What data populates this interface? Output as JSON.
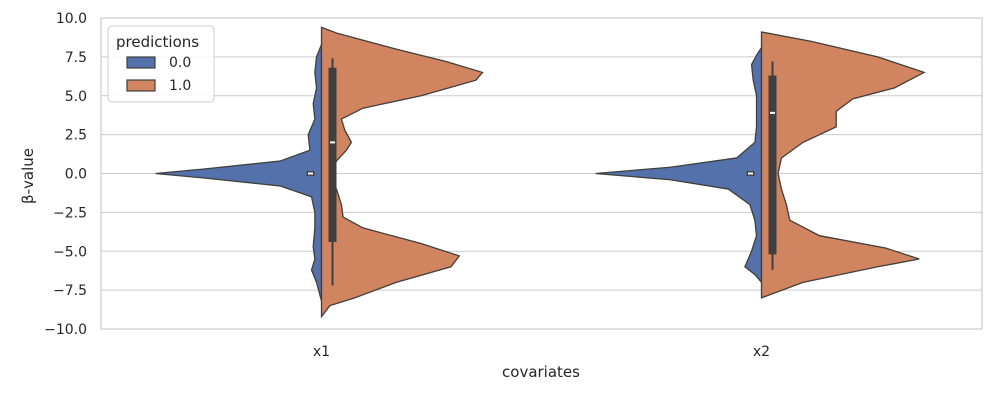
{
  "chart_data": {
    "type": "violin",
    "split": true,
    "title": "",
    "xlabel": "covariates",
    "ylabel": "β-value",
    "categories": [
      "x1",
      "x2"
    ],
    "ylim": [
      -10,
      10
    ],
    "yticks": [
      -10.0,
      -7.5,
      -5.0,
      -2.5,
      0.0,
      2.5,
      5.0,
      7.5,
      10.0
    ],
    "ytick_labels": [
      "−10.0",
      "−7.5",
      "−5.0",
      "−2.5",
      "0.0",
      "2.5",
      "5.0",
      "7.5",
      "10.0"
    ],
    "grid": true,
    "legend": {
      "title": "predictions",
      "placement": "top-left"
    },
    "series": [
      {
        "name": "0.0",
        "color": "#5471ab",
        "side": "left",
        "violins": [
          {
            "category": "x1",
            "range": [
              -8.2,
              8.3
            ],
            "box": {
              "q1": -0.15,
              "median": 0.0,
              "q3": 0.15
            },
            "density": [
              [
                -8.2,
                0.0
              ],
              [
                -7.0,
                0.03
              ],
              [
                -6.2,
                0.06
              ],
              [
                -5.5,
                0.04
              ],
              [
                -4.7,
                0.05
              ],
              [
                -3.5,
                0.04
              ],
              [
                -2.5,
                0.04
              ],
              [
                -1.5,
                0.06
              ],
              [
                -0.8,
                0.25
              ],
              [
                -0.3,
                0.7
              ],
              [
                0.0,
                1.0
              ],
              [
                0.3,
                0.7
              ],
              [
                0.8,
                0.25
              ],
              [
                1.5,
                0.07
              ],
              [
                2.5,
                0.08
              ],
              [
                3.5,
                0.04
              ],
              [
                4.5,
                0.05
              ],
              [
                5.5,
                0.03
              ],
              [
                6.5,
                0.04
              ],
              [
                7.5,
                0.03
              ],
              [
                8.3,
                0.0
              ]
            ]
          },
          {
            "category": "x2",
            "range": [
              -7.0,
              8.1
            ],
            "box": {
              "q1": -0.15,
              "median": 0.0,
              "q3": 0.15
            },
            "density": [
              [
                -7.0,
                0.0
              ],
              [
                -6.5,
                0.04
              ],
              [
                -6.0,
                0.1
              ],
              [
                -5.0,
                0.06
              ],
              [
                -4.0,
                0.03
              ],
              [
                -3.0,
                0.04
              ],
              [
                -2.0,
                0.07
              ],
              [
                -1.0,
                0.2
              ],
              [
                -0.4,
                0.55
              ],
              [
                0.0,
                1.0
              ],
              [
                0.4,
                0.55
              ],
              [
                1.0,
                0.15
              ],
              [
                2.0,
                0.04
              ],
              [
                3.0,
                0.03
              ],
              [
                4.0,
                0.03
              ],
              [
                5.0,
                0.03
              ],
              [
                6.0,
                0.05
              ],
              [
                7.0,
                0.06
              ],
              [
                7.6,
                0.03
              ],
              [
                8.1,
                0.0
              ]
            ]
          }
        ]
      },
      {
        "name": "1.0",
        "color": "#d0845f",
        "side": "right",
        "violins": [
          {
            "category": "x1",
            "range": [
              -9.2,
              9.4
            ],
            "box": {
              "q1": -4.4,
              "median": 2.0,
              "q3": 6.8,
              "whisker_low": -7.2,
              "whisker_high": 7.4
            },
            "density": [
              [
                -9.2,
                0.0
              ],
              [
                -8.5,
                0.05
              ],
              [
                -8.0,
                0.2
              ],
              [
                -7.0,
                0.45
              ],
              [
                -6.0,
                0.78
              ],
              [
                -5.3,
                0.83
              ],
              [
                -4.5,
                0.6
              ],
              [
                -3.5,
                0.25
              ],
              [
                -2.8,
                0.13
              ],
              [
                -2.0,
                0.12
              ],
              [
                -1.0,
                0.09
              ],
              [
                0.0,
                0.05
              ],
              [
                0.8,
                0.09
              ],
              [
                1.5,
                0.15
              ],
              [
                2.0,
                0.18
              ],
              [
                2.8,
                0.14
              ],
              [
                3.5,
                0.12
              ],
              [
                4.2,
                0.25
              ],
              [
                5.0,
                0.6
              ],
              [
                6.0,
                0.93
              ],
              [
                6.5,
                0.97
              ],
              [
                7.2,
                0.75
              ],
              [
                8.0,
                0.45
              ],
              [
                9.0,
                0.1
              ],
              [
                9.4,
                0.0
              ]
            ]
          },
          {
            "category": "x2",
            "range": [
              -8.0,
              9.1
            ],
            "box": {
              "q1": -5.2,
              "median": 3.9,
              "q3": 6.3,
              "whisker_low": -6.2,
              "whisker_high": 7.2
            },
            "density": [
              [
                -8.0,
                0.0
              ],
              [
                -7.0,
                0.25
              ],
              [
                -6.0,
                0.7
              ],
              [
                -5.5,
                0.95
              ],
              [
                -4.8,
                0.75
              ],
              [
                -4.0,
                0.35
              ],
              [
                -3.0,
                0.17
              ],
              [
                -2.0,
                0.15
              ],
              [
                -1.0,
                0.12
              ],
              [
                0.0,
                0.1
              ],
              [
                1.0,
                0.12
              ],
              [
                2.0,
                0.25
              ],
              [
                3.0,
                0.45
              ],
              [
                4.0,
                0.45
              ],
              [
                4.8,
                0.55
              ],
              [
                5.5,
                0.8
              ],
              [
                6.5,
                0.98
              ],
              [
                7.5,
                0.7
              ],
              [
                8.5,
                0.3
              ],
              [
                9.1,
                0.0
              ]
            ]
          }
        ]
      }
    ]
  }
}
